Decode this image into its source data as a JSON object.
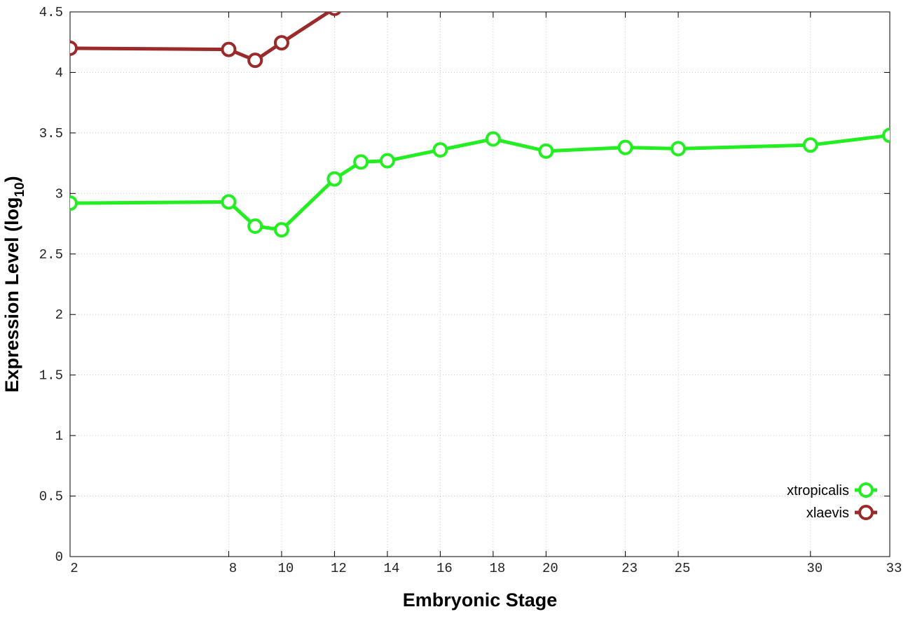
{
  "chart_data": {
    "type": "line",
    "x_label": "Embryonic Stage",
    "y_label": [
      "Expression Level (log",
      "10",
      ")"
    ],
    "xlim": [
      2,
      33
    ],
    "xticks": [
      2,
      8,
      10,
      12,
      14,
      16,
      18,
      20,
      23,
      25,
      30,
      33
    ],
    "ylim": [
      0,
      4.5
    ],
    "yticks": [
      0,
      0.5,
      1,
      1.5,
      2,
      2.5,
      3,
      3.5,
      4,
      4.5
    ],
    "grid": true,
    "legend": "lower right",
    "series": [
      {
        "name": "xtropicalis",
        "color": "#22ee22",
        "x": [
          2,
          8,
          9,
          10,
          12,
          13,
          14,
          16,
          18,
          20,
          23,
          25,
          30,
          33
        ],
        "values": [
          2.92,
          2.93,
          2.73,
          2.7,
          3.12,
          3.26,
          3.27,
          3.36,
          3.45,
          3.35,
          3.38,
          3.37,
          3.4,
          3.48
        ]
      },
      {
        "name": "xlaevis",
        "color": "#9b2a2a",
        "x": [
          2,
          8,
          9,
          10,
          12
        ],
        "values": [
          4.2,
          4.19,
          4.1,
          4.245,
          4.53
        ]
      }
    ]
  }
}
